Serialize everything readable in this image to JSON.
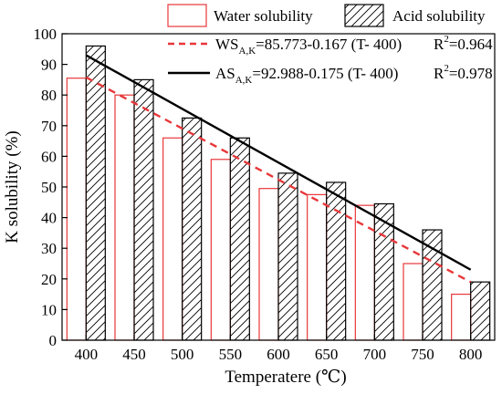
{
  "chart_data": {
    "type": "bar",
    "xlabel": "Temperatere (℃)",
    "ylabel": "K solubility (%)",
    "ylim": [
      0,
      100
    ],
    "yticks": [
      0,
      10,
      20,
      30,
      40,
      50,
      60,
      70,
      80,
      90,
      100
    ],
    "categories": [
      "400",
      "450",
      "500",
      "550",
      "600",
      "650",
      "700",
      "750",
      "800"
    ],
    "legend_position": "top",
    "series": [
      {
        "name": "Water solubility",
        "style": "open-bar",
        "color": "#e8373a",
        "values": [
          85.5,
          80,
          66,
          59,
          49.5,
          47.5,
          44,
          25,
          15
        ]
      },
      {
        "name": "Acid solubility",
        "style": "hatched-bar",
        "color": "#000000",
        "values": [
          96,
          85,
          72.5,
          66,
          54.5,
          51.5,
          44.5,
          36,
          19
        ]
      }
    ],
    "fit_lines": [
      {
        "series": "Water solubility",
        "style": "dashed",
        "color": "#e8373a",
        "equation": {
          "lhs": "WS",
          "subscript": "A,K",
          "rhs": "=85.773-0.167 (T- 400)",
          "r2_label": "R",
          "r2_sup": "2",
          "r2_value": "=0.964"
        },
        "intercept": 85.773,
        "slope": -0.167,
        "x0": 400,
        "x_range": [
          400,
          800
        ]
      },
      {
        "series": "Acid solubility",
        "style": "solid",
        "color": "#000000",
        "equation": {
          "lhs": "AS",
          "subscript": "A,K",
          "rhs": "=92.988-0.175 (T- 400)",
          "r2_label": "R",
          "r2_sup": "2",
          "r2_value": "=0.978"
        },
        "intercept": 92.988,
        "slope": -0.175,
        "x0": 400,
        "x_range": [
          400,
          800
        ]
      }
    ]
  }
}
